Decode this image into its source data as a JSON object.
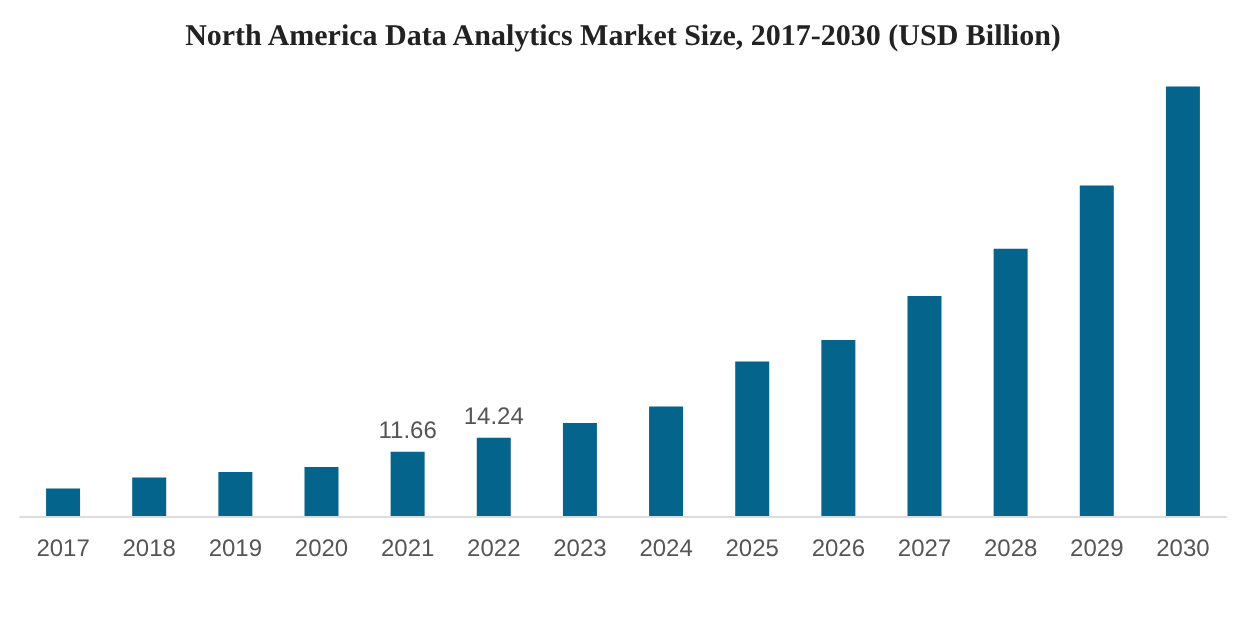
{
  "chart_data": {
    "type": "bar",
    "title": "North America Data Analytics Market Size, 2017-2030 (USD Billion)",
    "categories": [
      "2017",
      "2018",
      "2019",
      "2020",
      "2021",
      "2022",
      "2023",
      "2024",
      "2025",
      "2026",
      "2027",
      "2028",
      "2029",
      "2030"
    ],
    "values": [
      5.0,
      7.0,
      8.0,
      8.9,
      11.66,
      14.24,
      16.9,
      19.9,
      28.1,
      32.0,
      40.0,
      48.6,
      60.1,
      78.1
    ],
    "value_labels": [
      null,
      null,
      null,
      null,
      "11.66",
      "14.24",
      null,
      null,
      null,
      null,
      null,
      null,
      null,
      null
    ],
    "color": "#05648b"
  }
}
